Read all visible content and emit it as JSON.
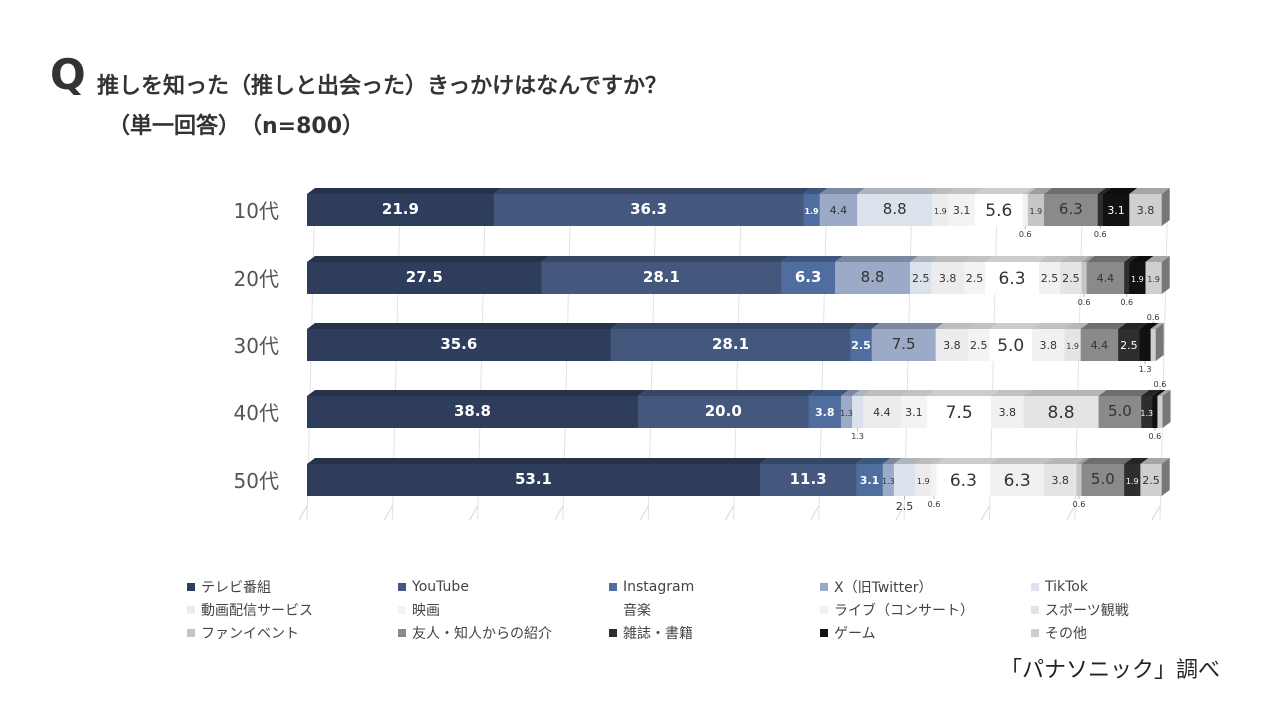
{
  "header": {
    "q_mark": "Q",
    "title": "推しを知った（推しと出会った）きっかけはなんですか？",
    "subtitle": "（単一回答）　（n=800）"
  },
  "source": "「パナソニック」調べ",
  "chart_data": {
    "type": "bar",
    "orientation": "horizontal",
    "stacked": true,
    "xlim": [
      0,
      100
    ],
    "grid": true,
    "legend_position": "bottom",
    "categories": [
      "10代",
      "20代",
      "30代",
      "40代",
      "50代"
    ],
    "series": [
      {
        "name": "テレビ番組",
        "color": "#2f3d5c",
        "values": [
          21.9,
          27.5,
          35.6,
          38.8,
          53.1
        ]
      },
      {
        "name": "YouTube",
        "color": "#44587e",
        "values": [
          36.3,
          28.1,
          28.1,
          20.0,
          11.3
        ]
      },
      {
        "name": "Instagram",
        "color": "#4f6d9e",
        "values": [
          1.9,
          6.3,
          2.5,
          3.8,
          3.1
        ]
      },
      {
        "name": "X（旧Twitter）",
        "color": "#9ca9c7",
        "values": [
          4.4,
          8.8,
          7.5,
          1.3,
          1.3
        ]
      },
      {
        "name": "TikTok",
        "color": "#dbe2ec",
        "values": [
          8.8,
          2.5,
          0,
          1.3,
          2.5
        ]
      },
      {
        "name": "動画配信サービス",
        "color": "#ececee",
        "values": [
          1.9,
          3.8,
          3.8,
          4.4,
          1.9
        ]
      },
      {
        "name": "映画",
        "color": "#f3f3f3",
        "values": [
          3.1,
          2.5,
          2.5,
          3.1,
          0.6
        ]
      },
      {
        "name": "音楽",
        "color": "#ffffff",
        "values": [
          5.6,
          6.3,
          5.0,
          7.5,
          6.3
        ]
      },
      {
        "name": "ライブ（コンサート）",
        "color": "#f1f1f1",
        "values": [
          0.6,
          2.5,
          3.8,
          3.8,
          6.3
        ]
      },
      {
        "name": "スポーツ観戦",
        "color": "#e4e4e4",
        "values": [
          0,
          2.5,
          1.9,
          8.8,
          3.8
        ]
      },
      {
        "name": "ファンイベント",
        "color": "#c6c6c6",
        "values": [
          1.9,
          0.6,
          0,
          0,
          0.6
        ]
      },
      {
        "name": "友人・知人からの紹介",
        "color": "#8a8a8a",
        "values": [
          6.3,
          4.4,
          4.4,
          5.0,
          5.0
        ]
      },
      {
        "name": "雑誌・書籍",
        "color": "#2e2e2e",
        "values": [
          0.6,
          0.6,
          2.5,
          1.3,
          1.9
        ]
      },
      {
        "name": "ゲーム",
        "color": "#111111",
        "values": [
          3.1,
          1.9,
          1.3,
          0.6,
          0
        ]
      },
      {
        "name": "その他",
        "color": "#cfcfcf",
        "values": [
          3.8,
          1.9,
          0.6,
          0.6,
          2.5
        ]
      }
    ]
  }
}
